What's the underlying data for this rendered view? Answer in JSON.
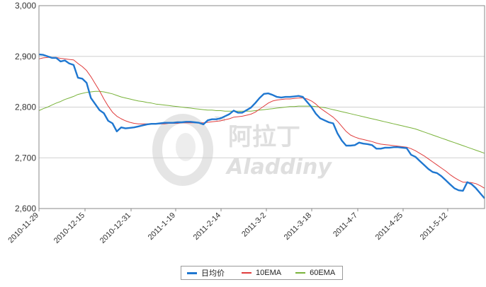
{
  "chart_data": {
    "type": "line",
    "ylim": [
      2600,
      3000
    ],
    "y_ticks": [
      "2,600",
      "2,700",
      "2,800",
      "2,900",
      "3,000"
    ],
    "x_tick_labels": [
      "2010-11-29",
      "2010-12-15",
      "2010-12-31",
      "2011-1-19",
      "2011-2-14",
      "2011-3-2",
      "2011-3-18",
      "2011-4-7",
      "2011-4-25",
      "2011-5-12"
    ],
    "grid": "horizontal",
    "legend_placement": "bottom-center",
    "watermark": "阿拉丁 Aladdiny",
    "series": [
      {
        "name": "日均价",
        "color": "#1f77d0",
        "values": [
          2904,
          2903,
          2900,
          2897,
          2897,
          2890,
          2892,
          2886,
          2883,
          2858,
          2856,
          2848,
          2818,
          2806,
          2794,
          2788,
          2773,
          2768,
          2752,
          2760,
          2758,
          2759,
          2760,
          2762,
          2764,
          2766,
          2767,
          2767,
          2768,
          2769,
          2769,
          2769,
          2770,
          2770,
          2771,
          2771,
          2770,
          2769,
          2766,
          2774,
          2776,
          2776,
          2778,
          2782,
          2786,
          2793,
          2789,
          2789,
          2794,
          2799,
          2808,
          2818,
          2826,
          2827,
          2824,
          2820,
          2819,
          2820,
          2820,
          2821,
          2822,
          2820,
          2810,
          2800,
          2787,
          2778,
          2774,
          2770,
          2768,
          2748,
          2734,
          2724,
          2724,
          2725,
          2730,
          2728,
          2727,
          2725,
          2718,
          2718,
          2720,
          2720,
          2721,
          2721,
          2720,
          2719,
          2706,
          2702,
          2694,
          2686,
          2678,
          2672,
          2670,
          2664,
          2656,
          2648,
          2640,
          2636,
          2635,
          2652,
          2648,
          2640,
          2630,
          2620
        ]
      },
      {
        "name": "10EMA",
        "color": "#e03c3c",
        "values": [
          2895,
          2897,
          2898,
          2898,
          2898,
          2896,
          2895,
          2894,
          2893,
          2886,
          2880,
          2872,
          2860,
          2846,
          2832,
          2816,
          2802,
          2790,
          2782,
          2777,
          2773,
          2770,
          2768,
          2767,
          2767,
          2767,
          2767,
          2767,
          2767,
          2767,
          2768,
          2768,
          2768,
          2769,
          2769,
          2769,
          2769,
          2769,
          2769,
          2770,
          2771,
          2772,
          2773,
          2775,
          2777,
          2780,
          2781,
          2782,
          2784,
          2786,
          2790,
          2796,
          2802,
          2808,
          2812,
          2814,
          2815,
          2816,
          2816,
          2817,
          2818,
          2818,
          2816,
          2812,
          2806,
          2798,
          2792,
          2786,
          2780,
          2772,
          2762,
          2752,
          2745,
          2741,
          2738,
          2736,
          2734,
          2732,
          2729,
          2727,
          2726,
          2725,
          2724,
          2723,
          2722,
          2721,
          2718,
          2714,
          2709,
          2704,
          2698,
          2692,
          2686,
          2680,
          2674,
          2667,
          2661,
          2656,
          2652,
          2652,
          2651,
          2649,
          2645,
          2640
        ]
      },
      {
        "name": "60EMA",
        "color": "#79b33a",
        "values": [
          2793,
          2797,
          2800,
          2804,
          2808,
          2811,
          2815,
          2818,
          2821,
          2825,
          2827,
          2829,
          2830,
          2831,
          2831,
          2830,
          2828,
          2826,
          2823,
          2820,
          2818,
          2816,
          2814,
          2812,
          2811,
          2809,
          2808,
          2806,
          2805,
          2804,
          2803,
          2802,
          2801,
          2800,
          2799,
          2798,
          2797,
          2796,
          2795,
          2794,
          2794,
          2793,
          2793,
          2792,
          2792,
          2792,
          2792,
          2792,
          2792,
          2792,
          2793,
          2794,
          2795,
          2796,
          2797,
          2798,
          2799,
          2800,
          2801,
          2801,
          2802,
          2802,
          2802,
          2802,
          2801,
          2800,
          2799,
          2797,
          2795,
          2793,
          2791,
          2789,
          2787,
          2785,
          2783,
          2781,
          2779,
          2777,
          2775,
          2773,
          2771,
          2769,
          2767,
          2765,
          2763,
          2761,
          2759,
          2757,
          2754,
          2751,
          2748,
          2745,
          2742,
          2739,
          2736,
          2733,
          2730,
          2727,
          2724,
          2721,
          2718,
          2715,
          2712,
          2709
        ]
      }
    ]
  }
}
